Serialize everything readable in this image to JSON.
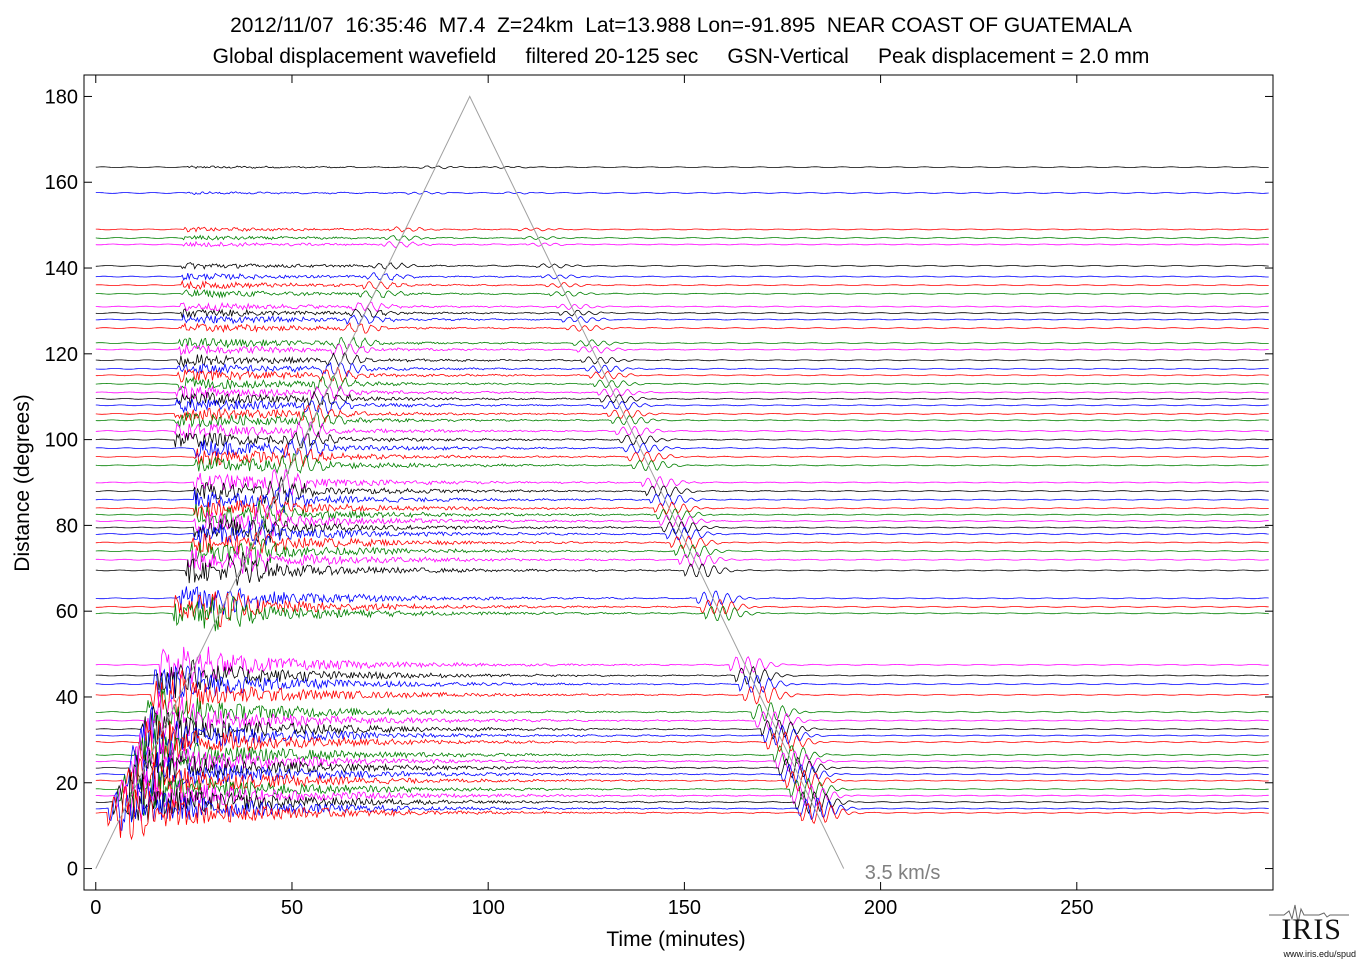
{
  "header": {
    "title_line1": "2012/11/07  16:35:46  M7.4  Z=24km  Lat=13.988 Lon=-91.895  NEAR COAST OF GUATEMALA",
    "title_line2": "Global displacement wavefield     filtered 20-125 sec     GSN-Vertical     Peak displacement = 2.0 mm"
  },
  "logo": {
    "text": "IRIS",
    "url": "www.iris.edu/spud"
  },
  "colors": {
    "axis": "#000000",
    "reference_line": "#a0a0a0",
    "reference_label": "#808080",
    "trace_colors": [
      "#000000",
      "#0000ff",
      "#ff0000",
      "#008000",
      "#ff00ff",
      "#9999ff",
      "#808080"
    ]
  },
  "chart_data": {
    "type": "line",
    "title": "2012/11/07  16:35:46  M7.4  Z=24km  Lat=13.988 Lon=-91.895  NEAR COAST OF GUATEMALA",
    "subtitle": "Global displacement wavefield     filtered 20-125 sec     GSN-Vertical     Peak displacement = 2.0 mm",
    "xlabel": "Time (minutes)",
    "ylabel": "Distance (degrees)",
    "xlim": [
      -3,
      300
    ],
    "ylim": [
      -5,
      185
    ],
    "xticks": [
      0,
      50,
      100,
      150,
      200,
      250
    ],
    "yticks": [
      0,
      20,
      40,
      60,
      80,
      100,
      120,
      140,
      160,
      180
    ],
    "grid": false,
    "reference_line": {
      "label": "3.5 km/s",
      "label_at": [
        200,
        -2
      ],
      "points": [
        [
          0,
          0
        ],
        [
          95.3,
          180
        ],
        [
          190.6,
          0
        ]
      ]
    },
    "station_distances": [
      163.5,
      157.5,
      149,
      147,
      145.5,
      140.5,
      138,
      136,
      134,
      131,
      129.5,
      128,
      126,
      122.5,
      121,
      118.5,
      116.5,
      115,
      113,
      111,
      109.5,
      108,
      106,
      104.5,
      102,
      100,
      98,
      96,
      94,
      90,
      88,
      86,
      84,
      82.5,
      81,
      79.5,
      78,
      76,
      74,
      72,
      69.5,
      63,
      61,
      59.5,
      47.5,
      45,
      43,
      40.5,
      36.5,
      34.5,
      32.5,
      31,
      29.5,
      26.5,
      25,
      23.5,
      22,
      20.5,
      18.5,
      17,
      15.5,
      14,
      13
    ]
  }
}
